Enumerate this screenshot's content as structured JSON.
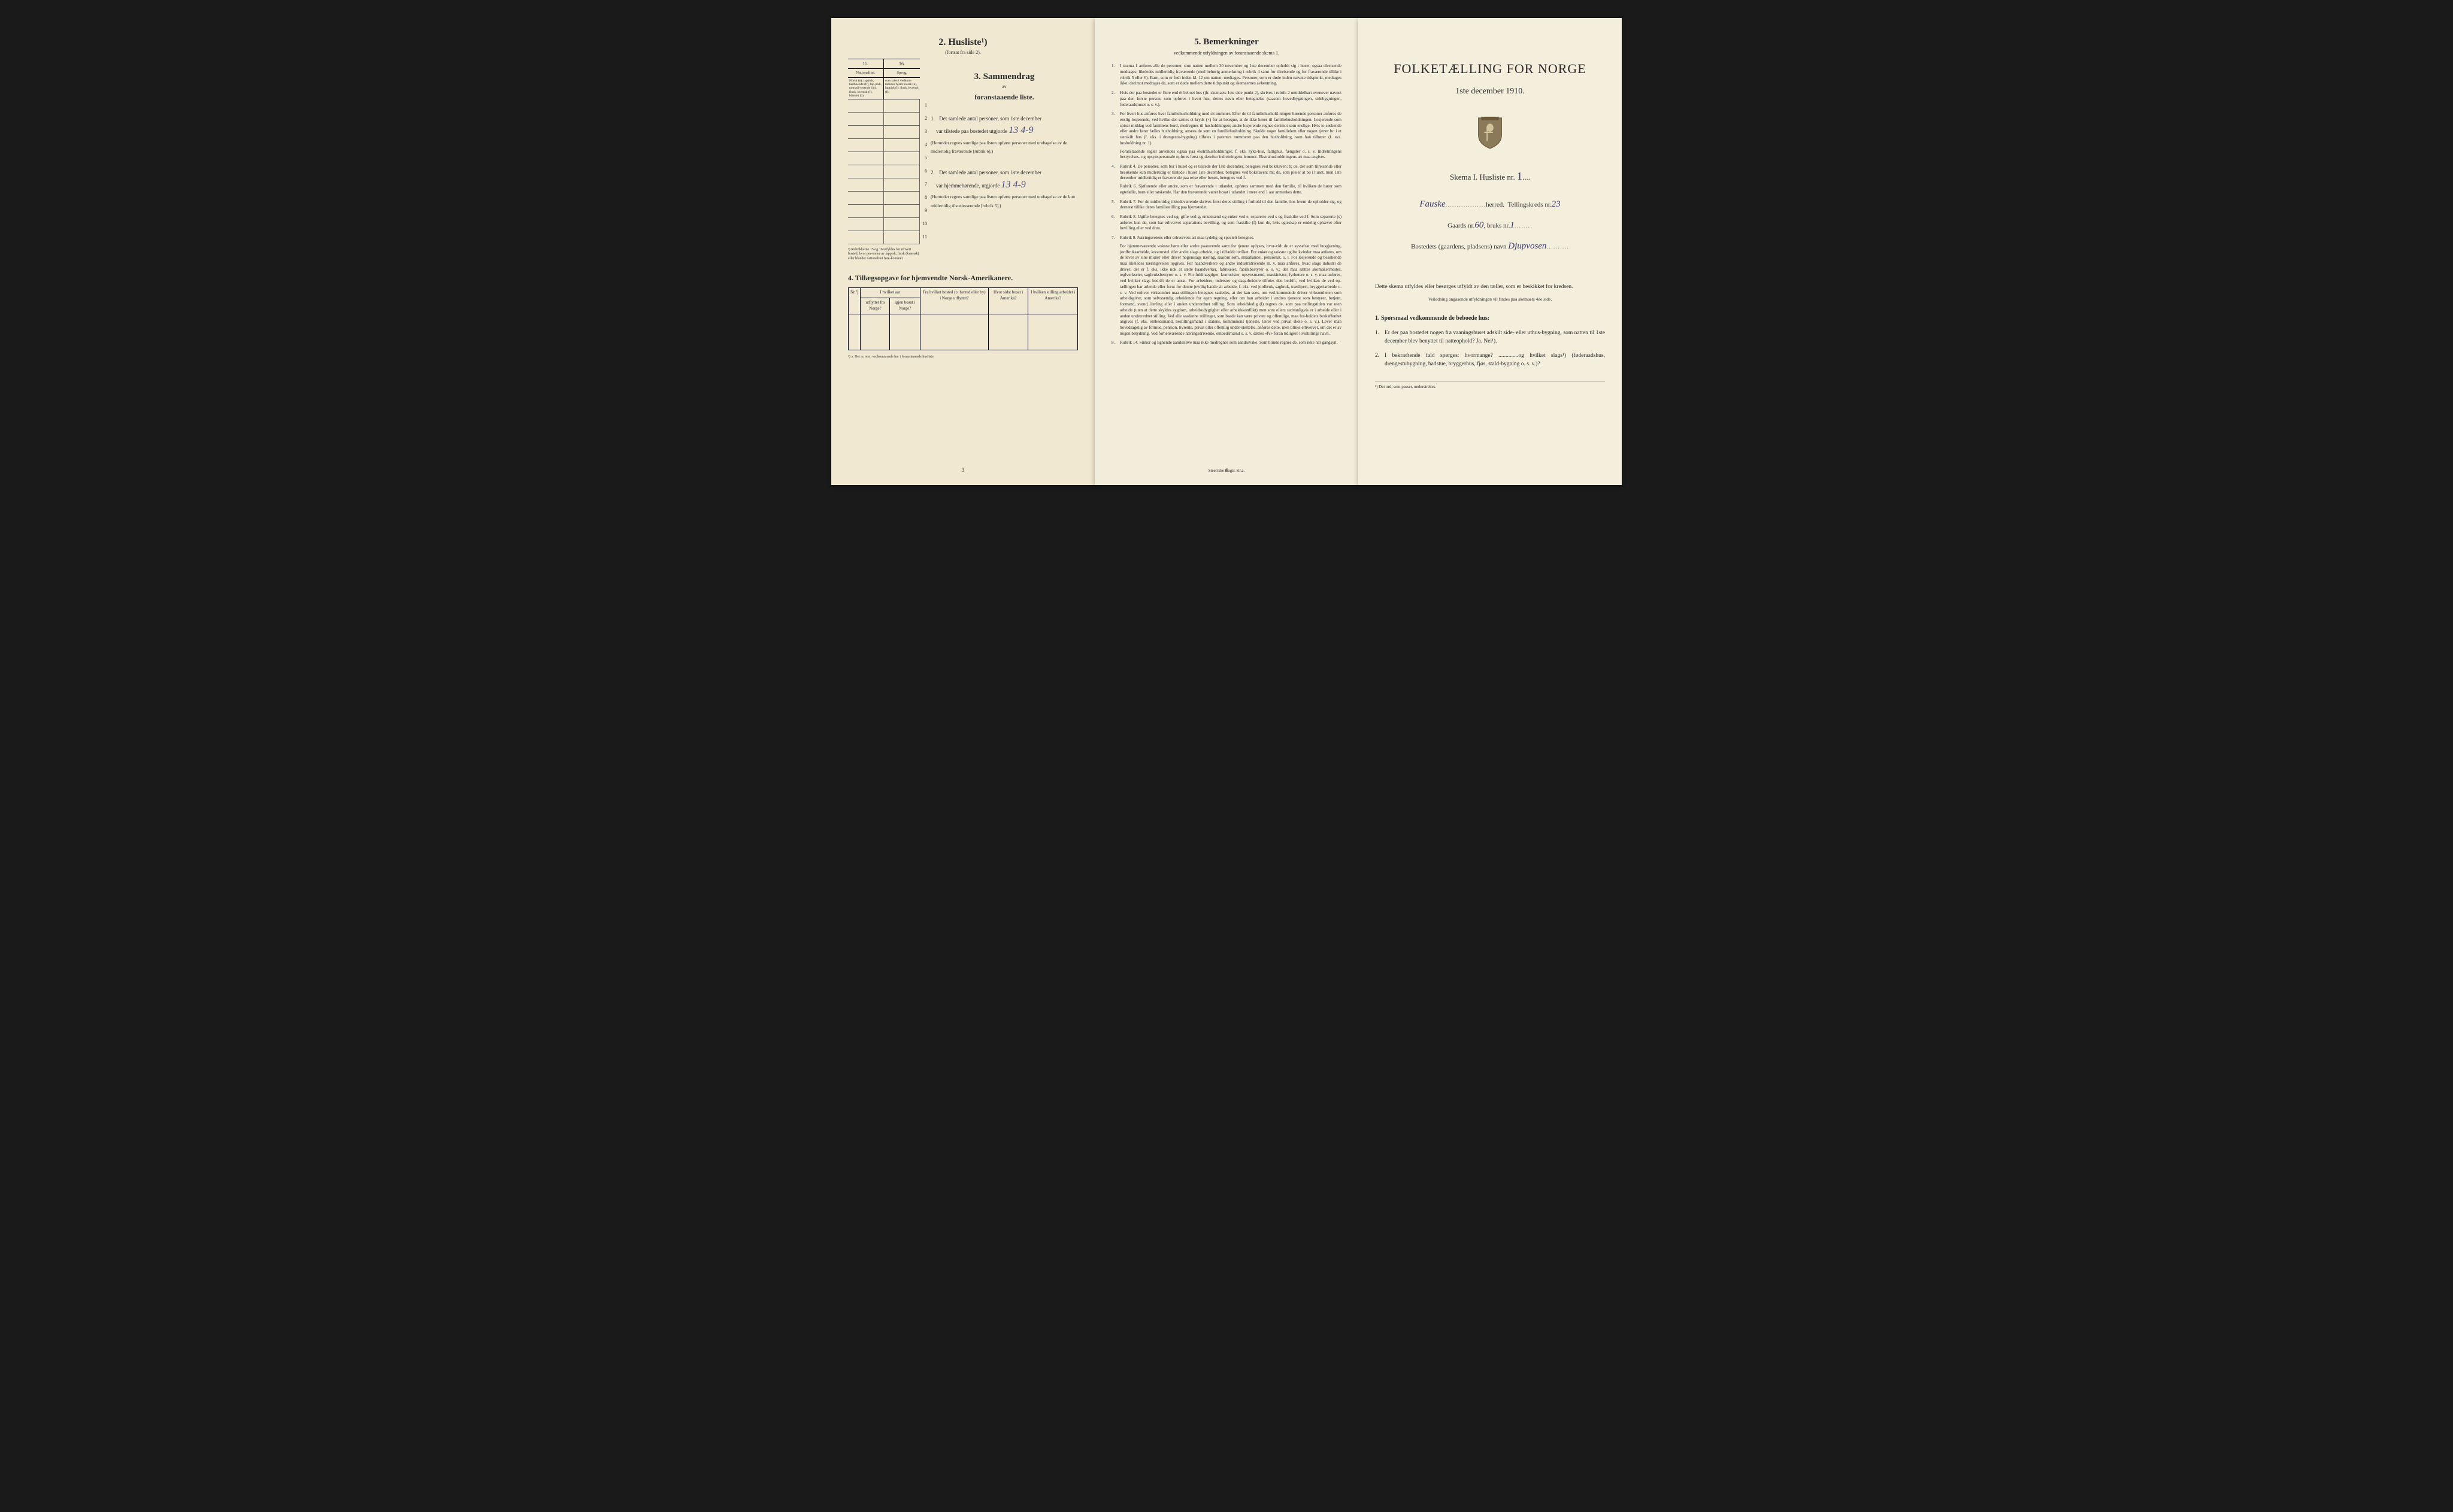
{
  "colors": {
    "page_bg": "#f2ebd8",
    "ink": "#2a2a2a",
    "handwriting": "#4a4a7a",
    "background": "#1a1a1a"
  },
  "page1": {
    "husliste_num": "2.",
    "husliste_title": "Husliste¹)",
    "husliste_sub": "(fortsat fra side 2).",
    "col15": "15.",
    "col16": "16.",
    "label15": "Nationalitet.",
    "label16": "Sprog,",
    "detail15": "Norsk (n), lappisk, fastboende (lf), lap-pisk, nomadi-serende (ln), finsk, kvænsk (f), blandet (b).",
    "detail16": "som tales i vedkom-mendes hjem: norsk (n), lappisk (l), finsk, kvænsk (f).",
    "side_label": "Personernes nr.",
    "row_numbers": [
      "1",
      "2",
      "3",
      "4",
      "5",
      "6",
      "7",
      "8",
      "9",
      "10",
      "11"
    ],
    "footnote1": "¹) Rubrikkerne 15 og 16 utfyldes for ethvert bosted, hvor per-soner av lappisk, finsk (kvænsk) eller blandet nationalitet fore-kommer.",
    "sammendrag_num": "3.",
    "sammendrag_title": "Sammendrag",
    "sammendrag_sub": "av",
    "sammendrag_sub2": "foranstaaende liste.",
    "item1_num": "1.",
    "item1_text_a": "Det samlede antal personer, som 1ste december",
    "item1_text_b": "var tilstede paa bostedet utgjorde",
    "item1_hand": "13  4-9",
    "item1_note": "(Herunder regnes samtlige paa listen opførte personer med undtagelse av de midlertidig fraværende [rubrik 6].)",
    "item2_num": "2.",
    "item2_text_a": "Det samlede antal personer, som 1ste december",
    "item2_text_b": "var hjemmehørende, utgjorde",
    "item2_hand": "13  4-9",
    "item2_note": "(Herunder regnes samtlige paa listen opførte personer med undtagelse av de kun midlertidig tilstedeværende [rubrik 5].)",
    "section4_title": "4. Tillægsopgave for hjemvendte Norsk-Amerikanere.",
    "table4_headers": [
      "Nr.²)",
      "I hvilket aar",
      "Fra hvilket bosted (ɔ: herred eller by) i Norge utflyttet?",
      "Hvor sidst bosat i Amerika?",
      "I hvilken stilling arbeidet i Amerika?"
    ],
    "table4_sub": [
      "",
      "utflyttet fra Norge?",
      "igjen bosat i Norge?",
      "",
      "",
      ""
    ],
    "footnote2": "²) ɔ: Det nr. som vedkommende har i foranstaaende husliste.",
    "page_num": "3"
  },
  "page2": {
    "title_num": "5.",
    "title": "Bemerkninger",
    "subtitle": "vedkommende utfyldningen av foranstaaende skema 1.",
    "items": [
      {
        "n": "1.",
        "t": "I skema 1 anføres alle de personer, som natten mellem 30 november og 1ste december opholdt sig i huset; ogsaa tilreisende medtages; likeledes midlertidig fraværende (med behørig anmerkning i rubrik 4 samt for tilreisende og for fraværende tillike i rubrik 5 eller 6). Barn, som er født inden kl. 12 om natten, medtages. Personer, som er døde inden nævnte tidspunkt, medtages ikke; derimot medtages de, som er døde mellem dette tidspunkt og skemaernes avhentning."
      },
      {
        "n": "2.",
        "t": "Hvis der paa bostedet er flere end ét beboet hus (jfr. skemaets 1ste side punkt 2), skrives i rubrik 2 umiddelbart ovenover navnet paa den første person, som opføres i hvert hus, dettes navn eller betegnelse (saasom hovedbygningen, sidebygningen, føderaadshuset o. s. v.)."
      },
      {
        "n": "3.",
        "t": "For hvert hus anføres hver familiehusholdning med sit nummer. Efter de til familiehushold-ningen hørende personer anføres de enslig losjerende, ved hvilke der sættes et kryds (×) for at betegne, at de ikke hører til familiehusholdningen. Losjerende som spiser middag ved familiens bord, medregnes til husholdningen; andre losjerende regnes derimot som enslige. Hvis to søskende eller andre fører fælles husholdning, ansees de som en familiehusholdning. Skulde noget familielem eller nogen tjener bo i et særskilt hus (f. eks. i drengestu-bygning) tilføies i parentes nummeret paa den husholdning, som han tilhører (f. eks. husholdning nr. 1).",
        "sub": "Foranstaaende regler anvendes ogsaa paa ekstrahusholdninger, f. eks. syke-hus, fattighus, fængsler o. s. v. Indretningens bestyrelses- og opsynspersonale opføres først og derefter indretningens lemmer. Ekstrahusholdningens art maa angives."
      },
      {
        "n": "4.",
        "t": "Rubrik 4. De personer, som bor i huset og er tilstede der 1ste december, betegnes ved bokstaven: b; de, der som tilreisende eller besøkende kun midlertidig er tilstede i huset 1ste december, betegnes ved bokstaven: mt; de, som pleier at bo i huset, men 1ste december midlertidig er fraværende paa reise eller besøk, betegnes ved f.",
        "sub": "Rubrik 6. Sjøfarende eller andre, som er fraværende i utlandet, opføres sammen med den familie, til hvilken de hører som egtefælle, barn eller søskende.  Har den fraværende været bosat i utlandet i mere end 1 aar anmerkes dette."
      },
      {
        "n": "5.",
        "t": "Rubrik 7. For de midlertidig tilstedeværende skrives først deres stilling i forhold til den familie, hos hvem de opholder sig, og dernæst tillike deres familiestilling paa hjemstedet."
      },
      {
        "n": "6.",
        "t": "Rubrik 8. Ugifte betegnes ved ug, gifte ved g, enkemænd og enker ved e, separerte ved s og fraskilte ved f. Som separerte (s) anføres kun de, som har erhvervet separations-bevilling, og som fraskilte (f) kun de, hvis egteskap er endelig ophævet efter bevilling eller ved dom."
      },
      {
        "n": "7.",
        "t": "Rubrik 9. Næringsveiens eller erhvervets art maa tydelig og specielt betegnes.",
        "sub": "For hjemmeværende voksne børn eller andre paarørende samt for tjenere oplyses, hvor-vidt de er sysselsat med husgjerning, jordbruksarbeide, kreaturstel eller andet slags arbeide, og i tilfælde hvilket. For enker og voksne ugifte kvinder maa anføres, om de lever av sine midler eller driver nogenslags næring, saasom søm, smaahandel, pensionat, o. l.  For losjerende og besøkende maa likeledes næringsveien opgives.  For haandverkere og andre industridrivende m. v. maa anføres, hvad slags industri de driver; det er f. eks. ikke nok at sætte haandverker, fabrikeier, fabrikbestyrer o. s. v.; der maa sættes skomakermester, teglverkseier, sagbruksbestyrer o. s. v.  For fuldmægtiger, kontorister, opsynsmænd, maskinister, fyrbøtere o. s. v. maa anføres, ved hvilket slags bedrift de er ansat.  For arbeidere, inderster og dagarbeidere tilføies den bedrift, ved hvilken de ved op-tællingen har arbeide eller forut for denne jevnlig hadde sit arbeide, f. eks. ved jordbruk, sagbruk, træsliperi, bryggeriarbeide o. s. v.  Ved enhver virksomhet maa stillingen betegnes saaledes, at det kan sees, om ved-kommende driver virksomheten som arbeidsgiver, som selvstændig arbeidende for egen regning, eller om han arbeider i andres tjeneste som bestyrer, betjent, formand, svend, lærling eller i anden underordnet stilling.  Som arbeidsledig (l) regnes de, som paa tællingstiden var uten arbeide (uten at dette skyldes sygdom, arbeidsudygtighet eller arbeidskonflikt) men som ellers sedvanligvis er i arbeide eller i anden underordnet stilling.  Ved alle saadanne stillinger, som baade kan være private og offentlige, maa for-holdets beskaffenhet angives (f. eks. embedsmand, bestillingsmand i statens, kommunens tjeneste, lærer ved privat skole o. s. v.).  Lever man hovedsagelig av formue, pension, livrente, privat eller offentlig under-støttelse, anføres dette, men tillike erhvervet, om det er av nogen betydning.  Ved forhenværende næringsdrivende, embedsmænd o. s. v. sættes «fv» foran tidligere livsstillings navn."
      },
      {
        "n": "8.",
        "t": "Rubrik 14. Sinker og lignende aandssløve maa ikke medregnes som aandssvake.  Som blinde regnes de, som ikke har gangsyn."
      }
    ],
    "page_num": "4",
    "printer": "Steen'ske Bogtr. Kr.a."
  },
  "page3": {
    "main_title": "FOLKETÆLLING FOR NORGE",
    "main_date": "1ste december 1910.",
    "skema_label": "Skema I.  Husliste nr.",
    "skema_hand": "1",
    "herred_hand": "Fauske",
    "herred_label": "herred.",
    "tellingskreds_label": "Tellingskreds nr.",
    "tellingskreds_hand": "23",
    "gaards_label": "Gaards nr.",
    "gaards_hand": "60",
    "bruks_label": ", bruks nr.",
    "bruks_hand": "1",
    "bosted_label": "Bostedets (gaardens, pladsens) navn",
    "bosted_hand": "Djupvosen",
    "instr_text": "Dette skema utfyldes eller besørges utfyldt av den tæller, som er beskikket for kredsen.",
    "instr_sub": "Veiledning angaaende utfyldningen vil findes paa skemaets 4de side.",
    "q_heading": "1. Spørsmaal vedkommende de beboede hus:",
    "q1_n": "1.",
    "q1_t": "Er der paa bostedet nogen fra vaaningshuset adskilt side- eller uthus-bygning, som natten til 1ste december blev benyttet til natteophold?  Ja.  Nei¹).",
    "q2_n": "2.",
    "q2_t": "I bekræftende fald spørges: hvormange? ..............og hvilket slags¹) (føderaadshus, drengestubygning, badstue, bryggerhus, fjøs, stald-bygning o. s. v.)?",
    "foot": "¹) Det ord, som passer, understrekes."
  }
}
